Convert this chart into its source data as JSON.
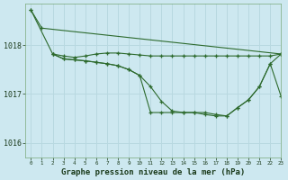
{
  "xlabel": "Graphe pression niveau de la mer (hPa)",
  "bg_color": "#cde8f0",
  "plot_bg_color": "#cde8f0",
  "grid_color": "#b8d8e0",
  "line_color": "#2d6a2d",
  "xlim": [
    -0.5,
    23
  ],
  "ylim": [
    1015.7,
    1018.85
  ],
  "yticks": [
    1016,
    1017,
    1018
  ],
  "xticks": [
    0,
    1,
    2,
    3,
    4,
    5,
    6,
    7,
    8,
    9,
    10,
    11,
    12,
    13,
    14,
    15,
    16,
    17,
    18,
    19,
    20,
    21,
    22,
    23
  ],
  "series": [
    {
      "x": [
        0,
        1,
        23
      ],
      "y": [
        1018.72,
        1018.35,
        1017.82
      ]
    },
    {
      "x": [
        2,
        3,
        4,
        5,
        6,
        7,
        8,
        9,
        10,
        11,
        12,
        13,
        14,
        15,
        16,
        17,
        18,
        19,
        20,
        21,
        22,
        23
      ],
      "y": [
        1017.82,
        1017.78,
        1017.75,
        1017.78,
        1017.82,
        1017.84,
        1017.84,
        1017.82,
        1017.8,
        1017.78,
        1017.78,
        1017.78,
        1017.78,
        1017.78,
        1017.78,
        1017.78,
        1017.78,
        1017.78,
        1017.78,
        1017.78,
        1017.78,
        1017.82
      ]
    },
    {
      "x": [
        2,
        3,
        4,
        5,
        6,
        7,
        8,
        9,
        10,
        11,
        12,
        13,
        14,
        15,
        16,
        17,
        18,
        19,
        20,
        21,
        22,
        23
      ],
      "y": [
        1017.82,
        1017.72,
        1017.7,
        1017.68,
        1017.65,
        1017.62,
        1017.58,
        1017.5,
        1017.38,
        1017.15,
        1016.85,
        1016.65,
        1016.62,
        1016.62,
        1016.62,
        1016.58,
        1016.55,
        1016.72,
        1016.88,
        1017.15,
        1017.62,
        1016.95
      ]
    },
    {
      "x": [
        0,
        2,
        3,
        4,
        5,
        6,
        7,
        8,
        9,
        10,
        11,
        12,
        13,
        14,
        15,
        16,
        17,
        18,
        19,
        20,
        21,
        22,
        23
      ],
      "y": [
        1018.72,
        1017.82,
        1017.72,
        1017.7,
        1017.68,
        1017.65,
        1017.62,
        1017.58,
        1017.5,
        1017.38,
        1016.62,
        1016.62,
        1016.62,
        1016.62,
        1016.62,
        1016.58,
        1016.55,
        1016.55,
        1016.72,
        1016.88,
        1017.15,
        1017.62,
        1017.82
      ]
    }
  ]
}
